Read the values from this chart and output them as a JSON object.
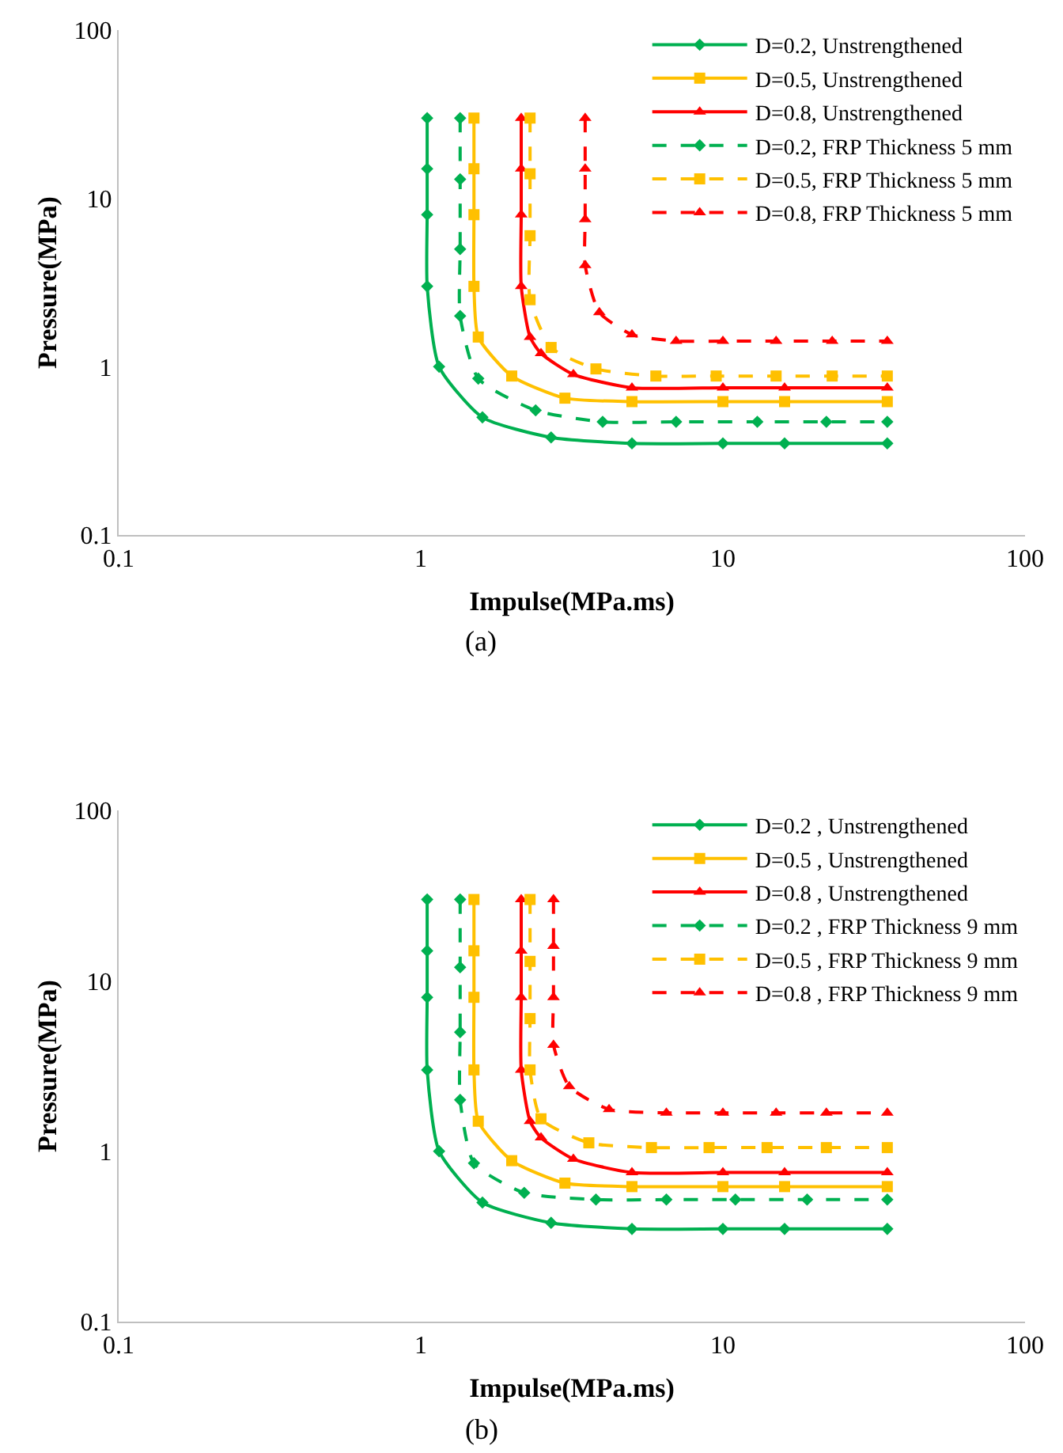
{
  "chart_data": [
    {
      "type": "line",
      "xlabel": "Impulse(MPa.ms)",
      "ylabel": "Pressure(MPa)",
      "log": "xy",
      "xlim": [
        0.1,
        100
      ],
      "ylim": [
        0.1,
        100
      ],
      "xticks": [
        0.1,
        1,
        10,
        100
      ],
      "yticks": [
        0.1,
        1,
        10,
        100
      ],
      "grid": false,
      "legend": "top right",
      "annotations": [
        "(a)"
      ],
      "series": [
        {
          "name": "D=0.2, Unstrengthened",
          "color": "#00b050",
          "marker": "diamond",
          "line_style": "solid",
          "x": [
            1.05,
            1.05,
            1.05,
            1.05,
            1.15,
            1.6,
            2.7,
            5,
            10,
            16,
            35
          ],
          "values": [
            30,
            15,
            8,
            3,
            1,
            0.5,
            0.38,
            0.35,
            0.35,
            0.35,
            0.35
          ]
        },
        {
          "name": "D=0.5, Unstrengthened",
          "color": "#ffc000",
          "marker": "square",
          "line_style": "solid",
          "x": [
            1.5,
            1.5,
            1.5,
            1.5,
            1.55,
            2,
            3,
            5,
            10,
            16,
            35
          ],
          "values": [
            30,
            15,
            8,
            3,
            1.5,
            0.88,
            0.65,
            0.62,
            0.62,
            0.62,
            0.62
          ]
        },
        {
          "name": "D=0.8, Unstrengthened",
          "color": "#ff0000",
          "marker": "triangle",
          "line_style": "solid",
          "x": [
            2.15,
            2.15,
            2.15,
            2.15,
            2.3,
            2.5,
            3.2,
            5,
            10,
            16,
            35
          ],
          "values": [
            30,
            15,
            8,
            3,
            1.5,
            1.2,
            0.9,
            0.75,
            0.75,
            0.75,
            0.75
          ]
        },
        {
          "name": "D=0.2, FRP Thickness 5 mm",
          "color": "#00b050",
          "marker": "diamond",
          "line_style": "dashed",
          "x": [
            1.35,
            1.35,
            1.35,
            1.35,
            1.55,
            2.4,
            4,
            7,
            13,
            22,
            35
          ],
          "values": [
            30,
            13,
            5,
            2,
            0.85,
            0.55,
            0.47,
            0.47,
            0.47,
            0.47,
            0.47
          ]
        },
        {
          "name": "D=0.5, FRP Thickness 5 mm",
          "color": "#ffc000",
          "marker": "square",
          "line_style": "dashed",
          "x": [
            2.3,
            2.3,
            2.3,
            2.3,
            2.7,
            3.8,
            6,
            9.5,
            15,
            23,
            35
          ],
          "values": [
            30,
            14,
            6,
            2.5,
            1.3,
            0.97,
            0.88,
            0.88,
            0.88,
            0.88,
            0.88
          ]
        },
        {
          "name": "D=0.8, FRP Thickness 5 mm",
          "color": "#ff0000",
          "marker": "triangle",
          "line_style": "dashed",
          "x": [
            3.5,
            3.5,
            3.5,
            3.5,
            3.9,
            5,
            7,
            10,
            15,
            23,
            35
          ],
          "values": [
            30,
            15,
            7.5,
            4,
            2.1,
            1.55,
            1.42,
            1.42,
            1.42,
            1.42,
            1.42
          ]
        }
      ]
    },
    {
      "type": "line",
      "xlabel": "Impulse(MPa.ms)",
      "ylabel": "Pressure(MPa)",
      "log": "xy",
      "xlim": [
        0.1,
        100
      ],
      "ylim": [
        0.1,
        100
      ],
      "xticks": [
        0.1,
        1,
        10,
        100
      ],
      "yticks": [
        0.1,
        1,
        10,
        100
      ],
      "grid": false,
      "legend": "top right",
      "annotations": [
        "(b)"
      ],
      "series": [
        {
          "name": "D=0.2 , Unstrengthened",
          "color": "#00b050",
          "marker": "diamond",
          "line_style": "solid",
          "x": [
            1.05,
            1.05,
            1.05,
            1.05,
            1.15,
            1.6,
            2.7,
            5,
            10,
            16,
            35
          ],
          "values": [
            30,
            15,
            8,
            3,
            1,
            0.5,
            0.38,
            0.35,
            0.35,
            0.35,
            0.35
          ]
        },
        {
          "name": "D=0.5 , Unstrengthened",
          "color": "#ffc000",
          "marker": "square",
          "line_style": "solid",
          "x": [
            1.5,
            1.5,
            1.5,
            1.5,
            1.55,
            2,
            3,
            5,
            10,
            16,
            35
          ],
          "values": [
            30,
            15,
            8,
            3,
            1.5,
            0.88,
            0.65,
            0.62,
            0.62,
            0.62,
            0.62
          ]
        },
        {
          "name": "D=0.8 , Unstrengthened",
          "color": "#ff0000",
          "marker": "triangle",
          "line_style": "solid",
          "x": [
            2.15,
            2.15,
            2.15,
            2.15,
            2.3,
            2.5,
            3.2,
            5,
            10,
            16,
            35
          ],
          "values": [
            30,
            15,
            8,
            3,
            1.5,
            1.2,
            0.9,
            0.75,
            0.75,
            0.75,
            0.75
          ]
        },
        {
          "name": "D=0.2 , FRP Thickness 9 mm",
          "color": "#00b050",
          "marker": "diamond",
          "line_style": "dashed",
          "x": [
            1.35,
            1.35,
            1.35,
            1.35,
            1.5,
            2.2,
            3.8,
            6.5,
            11,
            19,
            35
          ],
          "values": [
            30,
            12,
            5,
            2,
            0.85,
            0.57,
            0.52,
            0.52,
            0.52,
            0.52,
            0.52
          ]
        },
        {
          "name": "D=0.5 , FRP Thickness 9 mm",
          "color": "#ffc000",
          "marker": "square",
          "line_style": "dashed",
          "x": [
            2.3,
            2.3,
            2.3,
            2.3,
            2.5,
            3.6,
            5.8,
            9,
            14,
            22,
            35
          ],
          "values": [
            30,
            13,
            6,
            3,
            1.55,
            1.12,
            1.05,
            1.05,
            1.05,
            1.05,
            1.05
          ]
        },
        {
          "name": "D=0.8 , FRP Thickness 9 mm",
          "color": "#ff0000",
          "marker": "triangle",
          "line_style": "dashed",
          "x": [
            2.75,
            2.75,
            2.75,
            2.75,
            3.1,
            4.2,
            6.5,
            10,
            15,
            22,
            35
          ],
          "values": [
            30,
            16,
            8,
            4.2,
            2.4,
            1.76,
            1.68,
            1.68,
            1.68,
            1.68,
            1.68
          ]
        }
      ]
    }
  ]
}
